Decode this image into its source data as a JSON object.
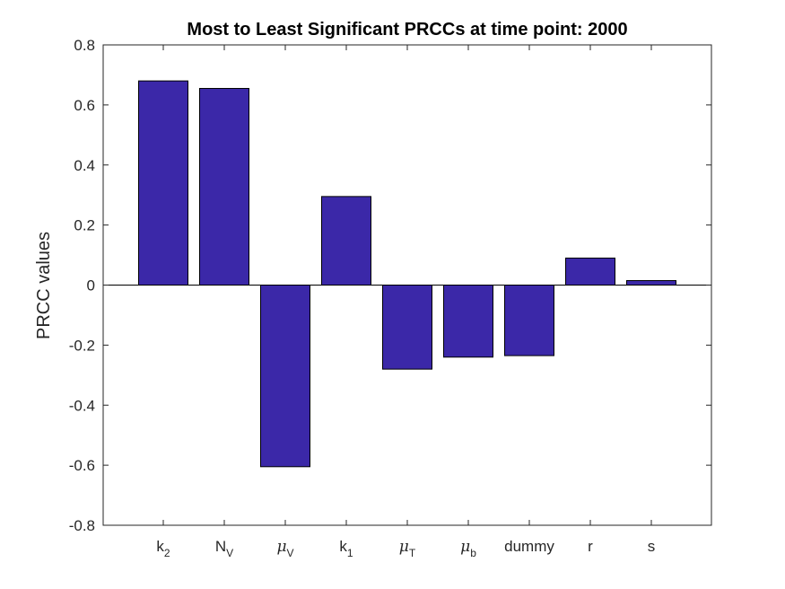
{
  "chart_data": {
    "type": "bar",
    "title": "Most to Least Significant PRCCs at time point: 2000",
    "xlabel": "",
    "ylabel": "PRCC values",
    "ylim": [
      -0.8,
      0.8
    ],
    "yticks": [
      "-0.8",
      "-0.6",
      "-0.4",
      "-0.2",
      "0",
      "0.2",
      "0.4",
      "0.6",
      "0.8"
    ],
    "ytick_values": [
      -0.8,
      -0.6,
      -0.4,
      -0.2,
      0,
      0.2,
      0.4,
      0.6,
      0.8
    ],
    "categories": [
      {
        "base": "k",
        "sub": "2",
        "greek": false
      },
      {
        "base": "N",
        "sub": "V",
        "greek": false
      },
      {
        "base": "μ",
        "sub": "V",
        "greek": true
      },
      {
        "base": "k",
        "sub": "1",
        "greek": false
      },
      {
        "base": "μ",
        "sub": "T",
        "greek": true
      },
      {
        "base": "μ",
        "sub": "b",
        "greek": true
      },
      {
        "base": "dummy",
        "sub": "",
        "greek": false
      },
      {
        "base": "r",
        "sub": "",
        "greek": false
      },
      {
        "base": "s",
        "sub": "",
        "greek": false
      }
    ],
    "values": [
      0.68,
      0.655,
      -0.605,
      0.295,
      -0.28,
      -0.24,
      -0.235,
      0.09,
      0.015
    ],
    "bar_color": "#3b28a8",
    "grid": false,
    "legend": "none"
  }
}
